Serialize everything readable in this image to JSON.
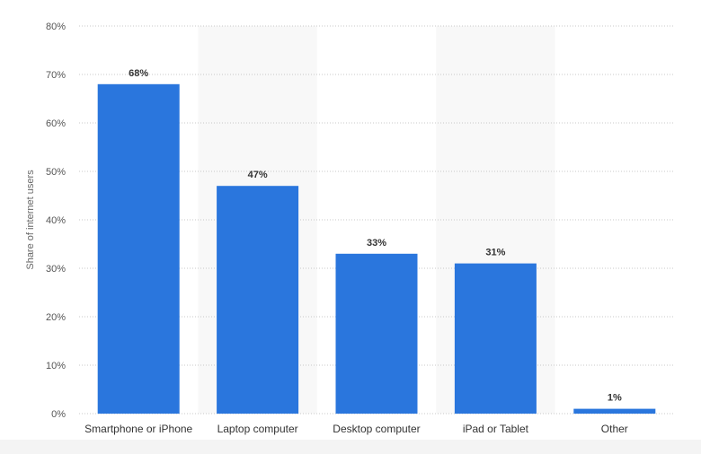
{
  "chart_data": {
    "type": "bar",
    "categories": [
      "Smartphone or iPhone",
      "Laptop computer",
      "Desktop computer",
      "iPad or Tablet",
      "Other"
    ],
    "values": [
      68,
      47,
      33,
      31,
      1
    ],
    "data_labels": [
      "68%",
      "47%",
      "33%",
      "31%",
      "1%"
    ],
    "ylabel": "Share of internet users",
    "xlabel": "",
    "ylim": [
      0,
      80
    ],
    "yticks": [
      0,
      10,
      20,
      30,
      40,
      50,
      60,
      70,
      80
    ],
    "ytick_labels": [
      "0%",
      "10%",
      "20%",
      "30%",
      "40%",
      "50%",
      "60%",
      "70%",
      "80%"
    ],
    "grid": true,
    "bar_color": "#2a76dd",
    "alt_band_color": "#f8f8f8"
  }
}
